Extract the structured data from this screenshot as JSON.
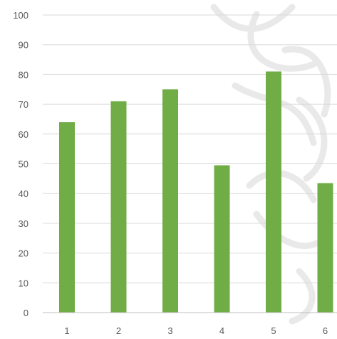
{
  "chart_data": {
    "type": "bar",
    "categories": [
      "1",
      "2",
      "3",
      "4",
      "5",
      "6"
    ],
    "values": [
      64,
      71,
      75,
      49.5,
      81,
      43.5
    ],
    "ylim": [
      0,
      100
    ],
    "yticks": [
      0,
      10,
      20,
      30,
      40,
      50,
      60,
      70,
      80,
      90,
      100
    ],
    "grid": true,
    "legend": "none",
    "colors": {
      "bar": "#70ad47",
      "grid": "#d9d9d9",
      "axis": "#bfbfbf",
      "tick_label": "#595959",
      "watermark": "#c8c8c8"
    }
  }
}
